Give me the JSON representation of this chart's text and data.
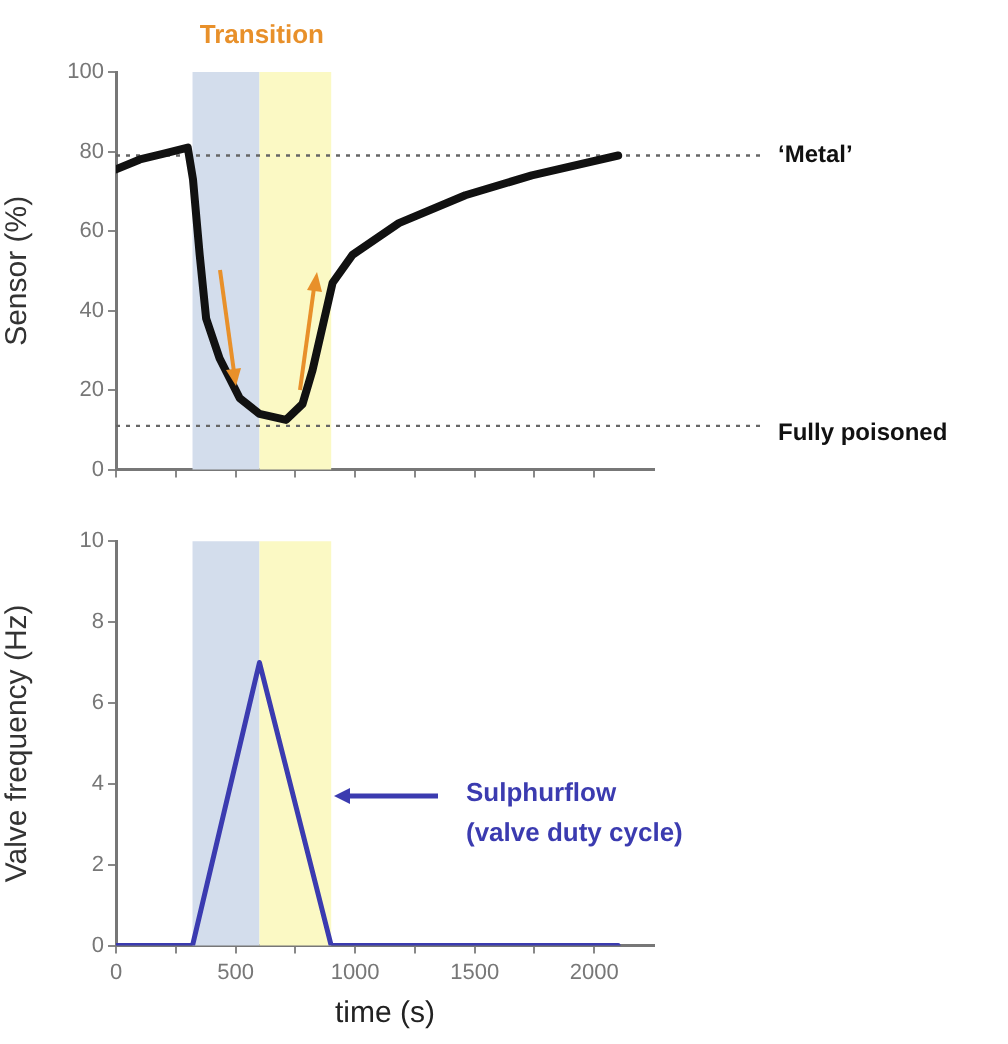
{
  "chart_data": [
    {
      "type": "line",
      "ylabel": "Sensor (%)",
      "xlim": [
        0,
        2250
      ],
      "xticks": [
        0,
        {
          "value": 250,
          "label": null
        },
        500,
        {
          "value": 750,
          "label": null
        },
        1000,
        {
          "value": 1250,
          "label": null
        },
        1500,
        {
          "value": 1750,
          "label": null
        },
        2000
      ],
      "ylim": [
        0,
        100
      ],
      "yticks": [
        0,
        20,
        40,
        60,
        80,
        100
      ],
      "tick_labels": "y",
      "grid": false,
      "legend": false,
      "marker": "none",
      "series": [
        {
          "color": "#111111",
          "x": [
            0,
            100,
            200,
            300,
            322,
            350,
            377,
            433,
            517,
            600,
            711,
            780,
            822,
            864,
            906,
            989,
            1183,
            1461,
            1739,
            2100
          ],
          "values": [
            75.5,
            78,
            79.5,
            81,
            73,
            54,
            38,
            28,
            18,
            14,
            12.5,
            16.5,
            25,
            36,
            47,
            54,
            62,
            69,
            74,
            79
          ]
        }
      ],
      "ref_lines": [
        {
          "axis": "y",
          "value": 79,
          "label": "‘Metal’",
          "color": "#666666",
          "line_style": "dotted"
        },
        {
          "axis": "y",
          "value": 11,
          "label": "Fully poisoned",
          "color": "#666666",
          "line_style": "dotted"
        }
      ],
      "bands": [
        {
          "axis": "x",
          "from": 320,
          "to": 600,
          "color": "#d3ddec"
        },
        {
          "axis": "x",
          "from": 600,
          "to": 900,
          "color": "#fbf9c4"
        }
      ],
      "annotations": [
        "Transition"
      ]
    },
    {
      "type": "line",
      "ylabel": "Valve frequency (Hz)",
      "xlabel": "time (s)",
      "xlim": [
        0,
        2250
      ],
      "xticks": [
        0,
        {
          "value": 250,
          "label": null
        },
        500,
        {
          "value": 750,
          "label": null
        },
        1000,
        {
          "value": 1250,
          "label": null
        },
        1500,
        {
          "value": 1750,
          "label": null
        },
        2000
      ],
      "ylim": [
        0,
        10
      ],
      "yticks": [
        0,
        2,
        4,
        6,
        8,
        10
      ],
      "grid": false,
      "legend": false,
      "marker": "none",
      "series": [
        {
          "color": "#3b3bb0",
          "x": [
            0,
            320,
            600,
            900,
            2100
          ],
          "values": [
            0,
            0,
            7,
            0,
            0
          ]
        }
      ],
      "bands": [
        {
          "axis": "x",
          "from": 320,
          "to": 600,
          "color": "#d3ddec"
        },
        {
          "axis": "x",
          "from": 600,
          "to": 900,
          "color": "#fbf9c4"
        }
      ],
      "annotations": [
        "Sulphurflow\n(valve duty cycle)"
      ]
    }
  ]
}
